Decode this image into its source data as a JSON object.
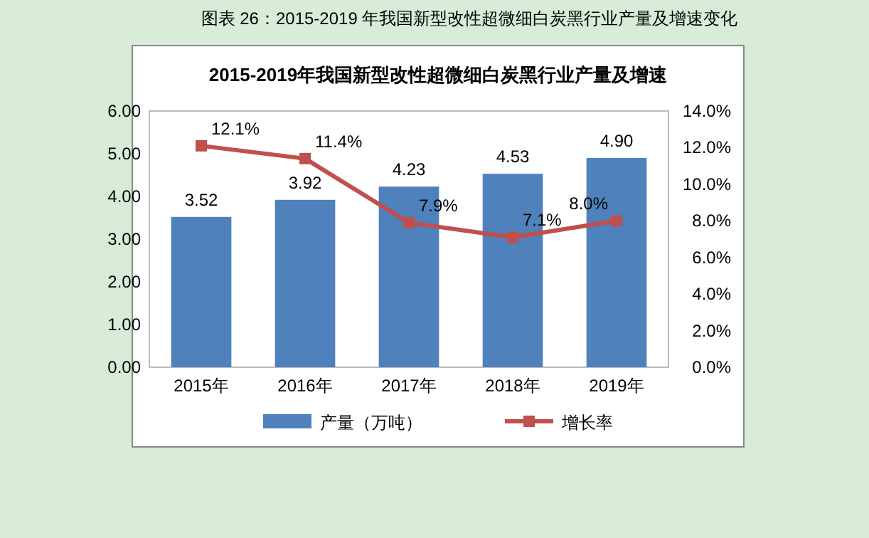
{
  "chart_data": {
    "type": "bar",
    "title": "图表 26：2015-2019 年我国新型改性超微细白炭黑行业产量及增速变化",
    "subtitle": "2015-2019年我国新型改性超微细白炭黑行业产量及增速",
    "categories": [
      "2015年",
      "2016年",
      "2017年",
      "2018年",
      "2019年"
    ],
    "series": [
      {
        "name": "产量（万吨）",
        "color": "#4f81bd",
        "values": [
          3.52,
          3.92,
          4.23,
          4.53,
          4.9
        ],
        "value_labels": [
          "3.52",
          "3.92",
          "4.23",
          "4.53",
          "4.90"
        ]
      },
      {
        "name": "增长率",
        "type": "line",
        "axis": "y2",
        "color": "#c0504d",
        "marker": "square",
        "values": [
          12.1,
          11.4,
          7.9,
          7.1,
          8.0
        ],
        "value_labels": [
          "12.1%",
          "11.4%",
          "7.9%",
          "7.1%",
          "8.0%"
        ]
      }
    ],
    "ylim": [
      0,
      6
    ],
    "yticks": [
      {
        "value": 0,
        "label": "0.00"
      },
      {
        "value": 1,
        "label": "1.00"
      },
      {
        "value": 2,
        "label": "2.00"
      },
      {
        "value": 3,
        "label": "3.00"
      },
      {
        "value": 4,
        "label": "4.00"
      },
      {
        "value": 5,
        "label": "5.00"
      },
      {
        "value": 6,
        "label": "6.00"
      }
    ],
    "y2lim": [
      0,
      14
    ],
    "y2ticks": [
      {
        "value": 0,
        "label": "0.0%"
      },
      {
        "value": 2,
        "label": "2.0%"
      },
      {
        "value": 4,
        "label": "4.0%"
      },
      {
        "value": 6,
        "label": "6.0%"
      },
      {
        "value": 8,
        "label": "8.0%"
      },
      {
        "value": 10,
        "label": "10.0%"
      },
      {
        "value": 12,
        "label": "12.0%"
      },
      {
        "value": 14,
        "label": "14.0%"
      }
    ],
    "legend": "bottom"
  }
}
